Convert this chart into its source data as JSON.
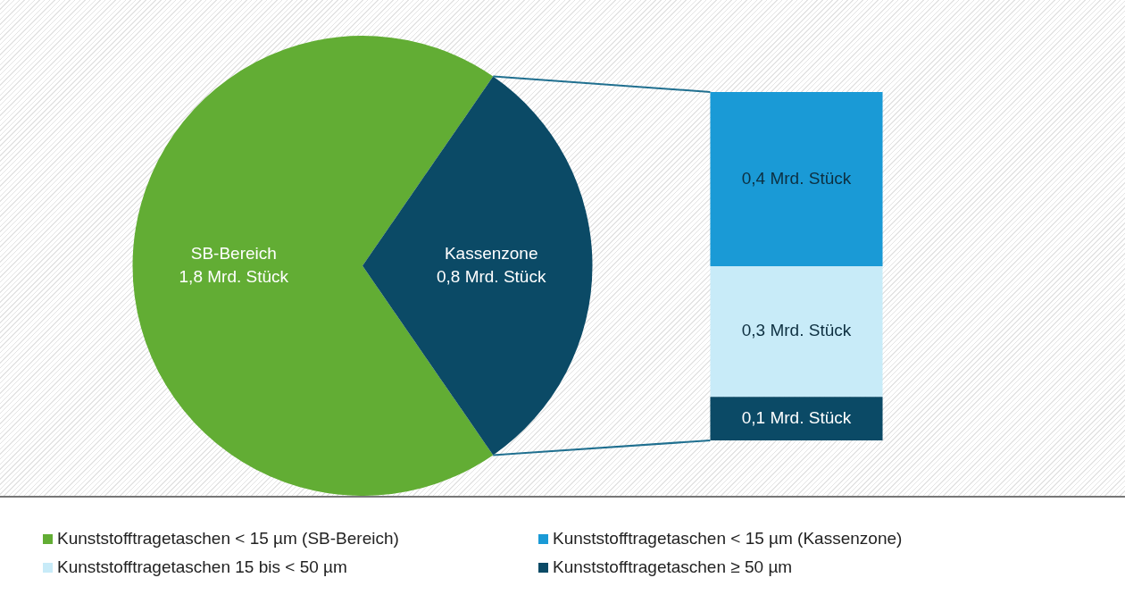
{
  "chart_data": [
    {
      "type": "pie",
      "categories": [
        "SB-Bereich",
        "Kassenzone"
      ],
      "values": [
        1.8,
        0.8
      ],
      "colors": [
        "#62ad34",
        "#0b4a66"
      ],
      "value_labels": [
        "1,8 Mrd. Stück",
        "0,8 Mrd. Stück"
      ],
      "annotations": [
        "Kunststofftragetaschen < 15 µm (SB-Bereich)"
      ]
    },
    {
      "type": "bar",
      "stacked": true,
      "categories": [
        null
      ],
      "tick_labels": false,
      "legend": "bottom",
      "series": [
        {
          "name": "Kunststofftragetaschen ≥ 50 µm",
          "color": "#0b4a66",
          "values": [
            0.1
          ],
          "value_labels": [
            "0,1 Mrd. Stück"
          ]
        },
        {
          "name": "Kunststofftragetaschen 15 bis < 50 µm",
          "color": "#c8ebf8",
          "values": [
            0.3
          ],
          "value_labels": [
            "0,3 Mrd. Stück"
          ]
        },
        {
          "name": "Kunststofftragetaschen < 15 µm (Kassenzone)",
          "color": "#1a9ad6",
          "values": [
            0.4
          ],
          "value_labels": [
            "0,4 Mrd. Stück"
          ]
        }
      ]
    }
  ]
}
